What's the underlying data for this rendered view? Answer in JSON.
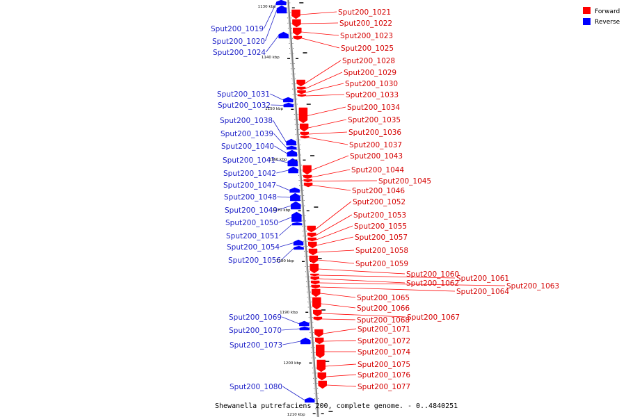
{
  "legend": {
    "forward_label": "Forward",
    "reverse_label": "Reverse",
    "forward_color": "#ff0000",
    "reverse_color": "#0000ff"
  },
  "caption": "Shewanella putrefaciens 200, complete genome. - 0..4840251",
  "kbp_labels": [
    "1130 kbp",
    "1140 kbp",
    "1150 kbp",
    "1160 kbp",
    "1170 kbp",
    "1180 kbp",
    "1190 kbp",
    "1200 kbp",
    "1210 kbp"
  ],
  "forward_genes": [
    "Sput200_1021",
    "Sput200_1022",
    "Sput200_1023",
    "Sput200_1025",
    "Sput200_1028",
    "Sput200_1029",
    "Sput200_1030",
    "Sput200_1033",
    "Sput200_1034",
    "Sput200_1035",
    "Sput200_1036",
    "Sput200_1037",
    "Sput200_1043",
    "Sput200_1044",
    "Sput200_1045",
    "Sput200_1046",
    "Sput200_1052",
    "Sput200_1053",
    "Sput200_1055",
    "Sput200_1057",
    "Sput200_1058",
    "Sput200_1059",
    "Sput200_1060",
    "Sput200_1061",
    "Sput200_1062",
    "Sput200_1063",
    "Sput200_1064",
    "Sput200_1065",
    "Sput200_1066",
    "Sput200_1067",
    "Sput200_1068",
    "Sput200_1071",
    "Sput200_1072",
    "Sput200_1074",
    "Sput200_1075",
    "Sput200_1076",
    "Sput200_1077"
  ],
  "reverse_genes": [
    "Sput200_1019",
    "Sput200_1020",
    "Sput200_1024",
    "Sput200_1031",
    "Sput200_1032",
    "Sput200_1038",
    "Sput200_1039",
    "Sput200_1040",
    "Sput200_1041",
    "Sput200_1042",
    "Sput200_1047",
    "Sput200_1048",
    "Sput200_1049",
    "Sput200_1050",
    "Sput200_1051",
    "Sput200_1054",
    "Sput200_1056",
    "Sput200_1069",
    "Sput200_1070",
    "Sput200_1073",
    "Sput200_1080"
  ]
}
